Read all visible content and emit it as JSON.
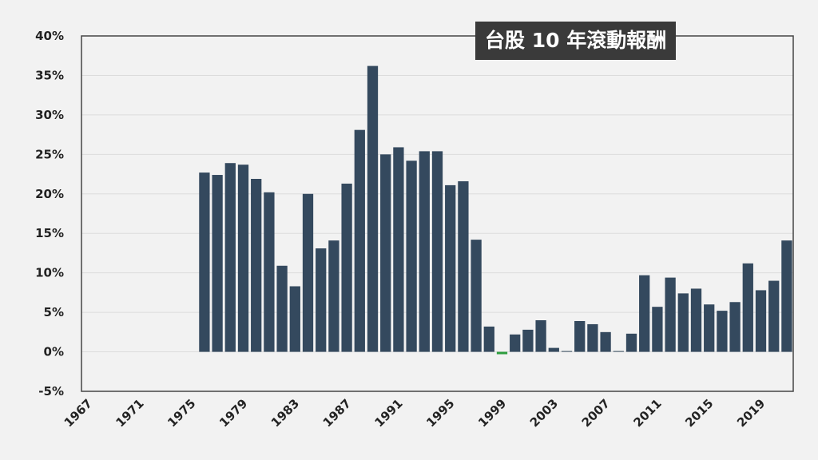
{
  "chart_data": {
    "type": "bar",
    "title": "台股 10 年滾動報酬",
    "xlabel": "",
    "ylabel": "",
    "ylim": [
      -0.05,
      0.4
    ],
    "yticks": [
      -0.05,
      0,
      0.05,
      0.1,
      0.15,
      0.2,
      0.25,
      0.3,
      0.35,
      0.4
    ],
    "ytick_labels": [
      "-5%",
      "0%",
      "5%",
      "10%",
      "15%",
      "20%",
      "25%",
      "30%",
      "35%",
      "40%"
    ],
    "xtick_labels": [
      "1967",
      "1971",
      "1975",
      "1979",
      "1983",
      "1987",
      "1991",
      "1995",
      "1999",
      "2003",
      "2007",
      "2011",
      "2015",
      "2019"
    ],
    "grid": "horizontal",
    "bar_color": "#34495e",
    "negative_color": "#2e9e3e",
    "categories": [
      1967,
      1968,
      1969,
      1970,
      1971,
      1972,
      1973,
      1974,
      1975,
      1976,
      1977,
      1978,
      1979,
      1980,
      1981,
      1982,
      1983,
      1984,
      1985,
      1986,
      1987,
      1988,
      1989,
      1990,
      1991,
      1992,
      1993,
      1994,
      1995,
      1996,
      1997,
      1998,
      1999,
      2000,
      2001,
      2002,
      2003,
      2004,
      2005,
      2006,
      2007,
      2008,
      2009,
      2010,
      2011,
      2012,
      2013,
      2014,
      2015,
      2016,
      2017,
      2018,
      2019,
      2020,
      2021
    ],
    "values": [
      null,
      null,
      null,
      null,
      null,
      null,
      null,
      null,
      null,
      0.227,
      0.224,
      0.239,
      0.237,
      0.219,
      0.202,
      0.109,
      0.083,
      0.2,
      0.131,
      0.141,
      0.213,
      0.281,
      0.362,
      0.25,
      0.259,
      0.242,
      0.254,
      0.254,
      0.211,
      0.216,
      0.142,
      0.032,
      -0.003,
      0.022,
      0.028,
      0.04,
      0.005,
      0.0,
      0.039,
      0.035,
      0.025,
      0.001,
      0.023,
      0.097,
      0.057,
      0.094,
      0.074,
      0.08,
      0.06,
      0.052,
      0.063,
      0.112,
      0.078,
      0.09,
      0.141
    ]
  }
}
